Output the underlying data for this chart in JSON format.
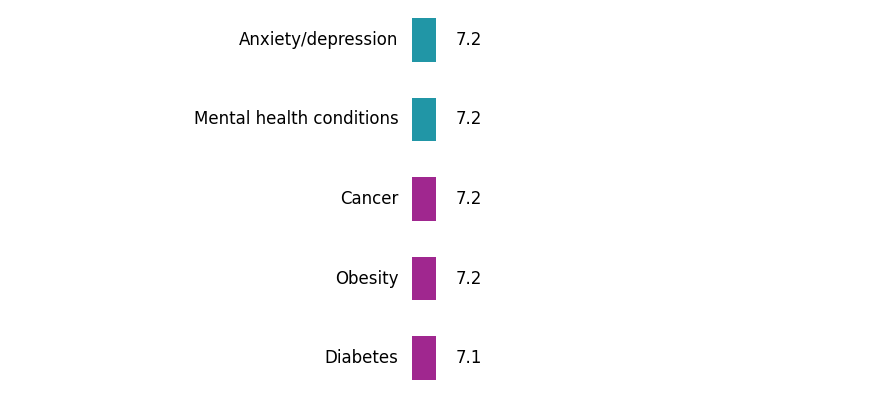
{
  "categories": [
    "Anxiety/depression",
    "Mental health conditions",
    "Cancer",
    "Obesity",
    "Diabetes"
  ],
  "values": [
    7.2,
    7.2,
    7.2,
    7.2,
    7.1
  ],
  "bar_colors": [
    "#2196A6",
    "#2196A6",
    "#A0278F",
    "#A0278F",
    "#A0278F"
  ],
  "background_color": "#ffffff",
  "label_fontsize": 12,
  "value_fontsize": 12,
  "figsize": [
    8.85,
    3.98
  ],
  "dpi": 100
}
